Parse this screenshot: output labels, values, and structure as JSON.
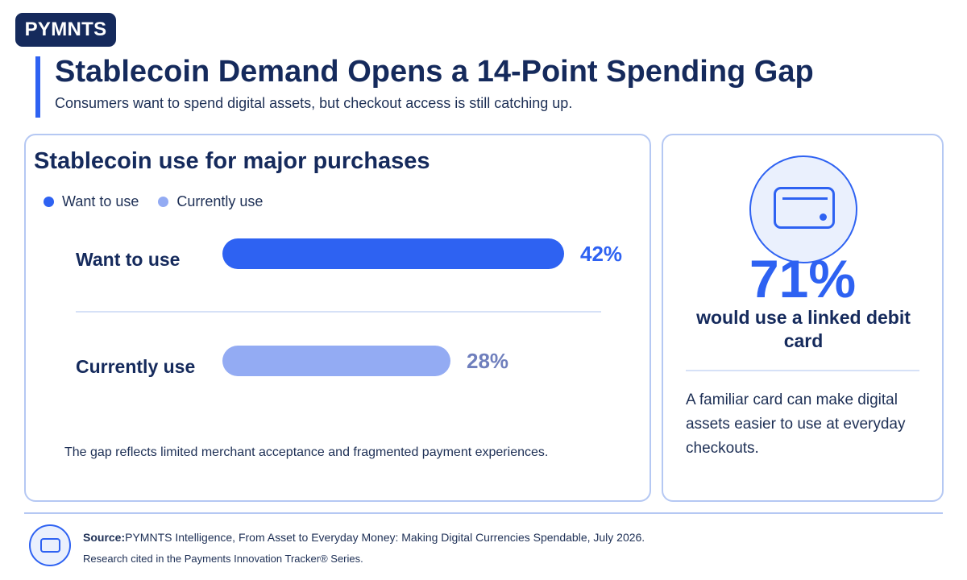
{
  "brand": {
    "logo_text": "PYMNTS"
  },
  "header": {
    "title": "Stablecoin Demand Opens a 14-Point Spending Gap",
    "subtitle": "Consumers want to spend digital assets, but checkout access is still catching up."
  },
  "chart_data": {
    "type": "bar",
    "orientation": "horizontal",
    "title": "Stablecoin use for major purchases",
    "categories": [
      "Want to use",
      "Currently use"
    ],
    "values": [
      42,
      28
    ],
    "value_labels": [
      "42%",
      "28%"
    ],
    "colors": [
      "#2e62f2",
      "#93abf3"
    ],
    "value_label_colors": [
      "#2e62f2",
      "#6f7fbd"
    ],
    "legend": {
      "placement": "top-left",
      "items": [
        {
          "label": "Want to use",
          "color": "#2e62f2"
        },
        {
          "label": "Currently use",
          "color": "#93abf3"
        }
      ]
    },
    "xlim": [
      0,
      60
    ],
    "grid": false
  },
  "chart_note": "The gap reflects limited merchant acceptance and fragmented payment experiences.",
  "stat": {
    "icon": "credit-card-icon",
    "value": "71%",
    "caption": "would use a linked debit card",
    "detail": "A familiar card can make digital assets easier to use at everyday checkouts."
  },
  "footer": {
    "icon": "card-icon",
    "source_label": "Source:",
    "source_text": "PYMNTS Intelligence, From Asset to Everyday Money: Making Digital Currencies Spendable, July 2026.",
    "note": "Research cited in the Payments Innovation Tracker® Series."
  },
  "colors": {
    "navy": "#152a5c",
    "accent": "#2e62f2",
    "light_accent": "#93abf3",
    "border": "#b5c8f3"
  }
}
